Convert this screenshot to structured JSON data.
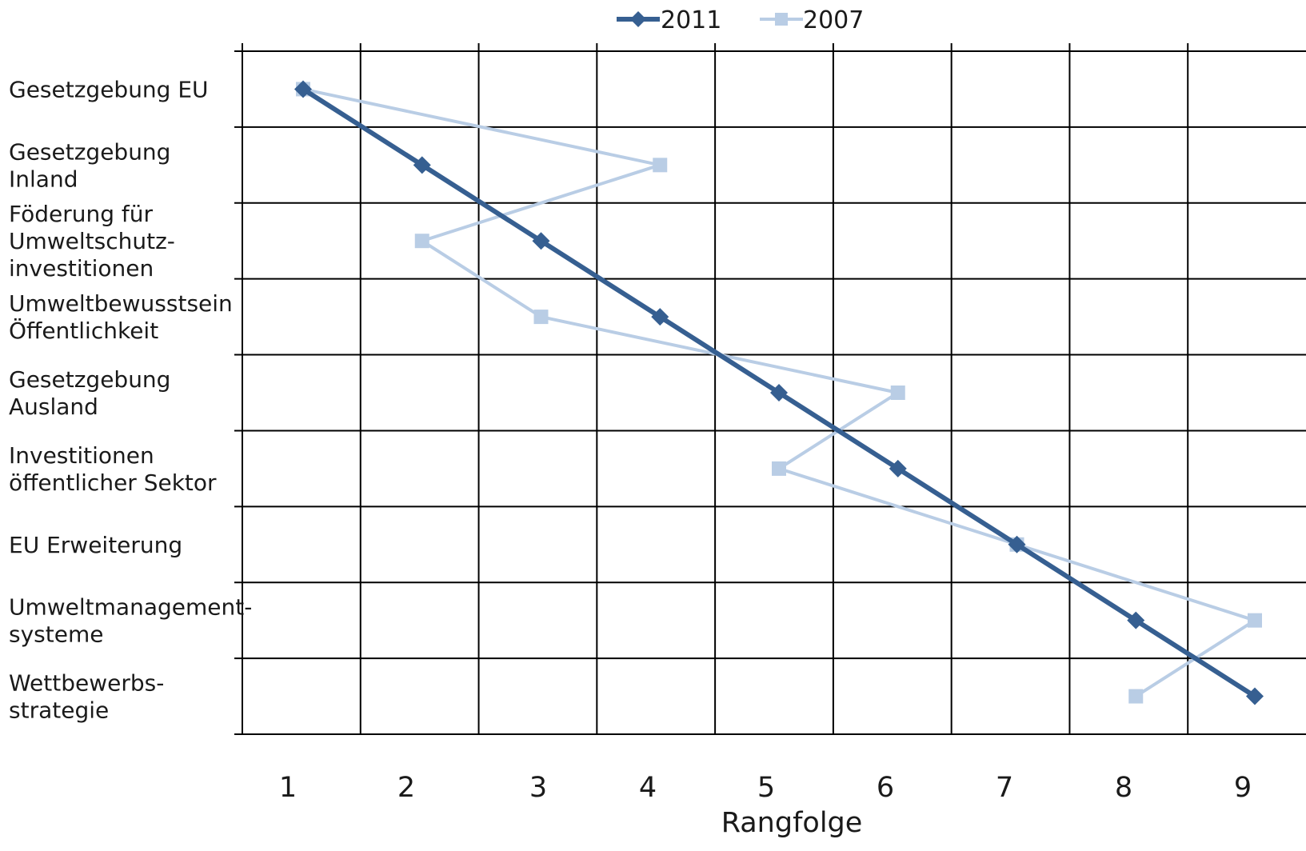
{
  "chart_data": {
    "type": "line",
    "categories": [
      [
        "Gesetzgebung EU"
      ],
      [
        "Gesetzgebung",
        "Inland"
      ],
      [
        "Föderung für",
        "Umweltschutz-",
        "investitionen"
      ],
      [
        "Umweltbewusstsein",
        "Öffentlichkeit"
      ],
      [
        "Gesetzgebung",
        "Ausland"
      ],
      [
        "Investitionen",
        "öffentlicher Sektor"
      ],
      [
        "EU Erweiterung"
      ],
      [
        "Umweltmanagement-",
        "systeme"
      ],
      [
        "Wettbewerbs-",
        "strategie"
      ]
    ],
    "series": [
      {
        "name": "2011",
        "color": "#365f91",
        "marker": "diamond",
        "values": [
          1,
          2,
          3,
          4,
          5,
          6,
          7,
          8,
          9
        ]
      },
      {
        "name": "2007",
        "color": "#b9cde5",
        "marker": "square",
        "values": [
          1,
          4,
          2,
          3,
          6,
          5,
          7,
          9,
          8
        ]
      }
    ],
    "x_ticks": [
      "1",
      "2",
      "3",
      "4",
      "5",
      "6",
      "7",
      "8",
      "9"
    ],
    "xlabel": "Rangfolge",
    "ylabel": "",
    "xlim": [
      0.5,
      9.5
    ],
    "grid": true,
    "legend_position": "top"
  }
}
